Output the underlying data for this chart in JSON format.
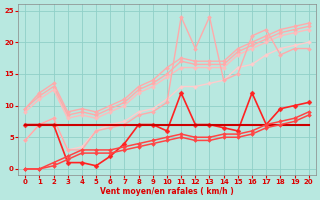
{
  "background_color": "#b8e8e0",
  "grid_color": "#90d0c8",
  "xlabel": "Vent moyen/en rafales ( km/h )",
  "xlim": [
    -0.5,
    20.5
  ],
  "ylim": [
    -1,
    26
  ],
  "xticks": [
    0,
    1,
    2,
    3,
    4,
    5,
    6,
    7,
    8,
    9,
    10,
    11,
    12,
    13,
    14,
    15,
    16,
    17,
    18,
    19,
    20
  ],
  "yticks": [
    0,
    5,
    10,
    15,
    20,
    25
  ],
  "series": [
    {
      "x": [
        0,
        1,
        2,
        3,
        4,
        5,
        6,
        7,
        8,
        9,
        10,
        11,
        12,
        13,
        14,
        15,
        16,
        17,
        18,
        19,
        20
      ],
      "y": [
        9.5,
        12,
        13.5,
        9,
        9.5,
        9,
        10,
        11,
        13,
        14,
        16,
        17.5,
        17,
        17,
        17,
        19,
        20,
        21,
        22,
        22.5,
        23
      ],
      "color": "#ffaaaa",
      "lw": 1.0,
      "marker": "D",
      "ms": 2.0
    },
    {
      "x": [
        0,
        1,
        2,
        3,
        4,
        5,
        6,
        7,
        8,
        9,
        10,
        11,
        12,
        13,
        14,
        15,
        16,
        17,
        18,
        19,
        20
      ],
      "y": [
        9.5,
        11.5,
        13,
        8.5,
        9,
        8.5,
        9.5,
        10.5,
        12.5,
        13.5,
        15,
        17,
        16.5,
        16.5,
        16.5,
        18.5,
        19.5,
        20.5,
        21.5,
        22,
        22.5
      ],
      "color": "#ffaaaa",
      "lw": 1.0,
      "marker": "D",
      "ms": 2.0
    },
    {
      "x": [
        0,
        1,
        2,
        3,
        4,
        5,
        6,
        7,
        8,
        9,
        10,
        11,
        12,
        13,
        14,
        15,
        16,
        17,
        18,
        19,
        20
      ],
      "y": [
        9,
        11,
        12.5,
        8,
        8.5,
        8,
        9,
        10,
        12,
        13,
        14.5,
        16,
        16,
        16,
        16,
        18,
        19,
        20,
        21,
        21.5,
        22
      ],
      "color": "#ffbbbb",
      "lw": 1.0,
      "marker": "D",
      "ms": 2.0
    },
    {
      "x": [
        0,
        1,
        2,
        3,
        4,
        5,
        6,
        7,
        8,
        9,
        10,
        11,
        12,
        13,
        14,
        15,
        16,
        17,
        18,
        19,
        20
      ],
      "y": [
        4.5,
        7,
        8,
        3,
        3.5,
        6,
        7,
        7.5,
        9,
        9.5,
        11,
        13,
        13,
        13.5,
        14,
        16,
        16.5,
        18,
        19,
        19.5,
        20
      ],
      "color": "#ffcccc",
      "lw": 1.0,
      "marker": "D",
      "ms": 2.0
    },
    {
      "x": [
        0,
        1,
        2,
        3,
        4,
        5,
        6,
        7,
        8,
        9,
        10,
        11,
        12,
        13,
        14,
        15,
        16,
        17,
        18,
        19,
        20
      ],
      "y": [
        4.5,
        7,
        8,
        3,
        3,
        6,
        6.5,
        7,
        8.5,
        9,
        10.5,
        24,
        19,
        24,
        14,
        15,
        21,
        22,
        18,
        19,
        19
      ],
      "color": "#ffaaaa",
      "lw": 1.0,
      "marker": "D",
      "ms": 2.0
    },
    {
      "x": [
        0,
        1,
        2,
        3,
        4,
        5,
        6,
        7,
        8,
        9,
        10,
        11,
        12,
        13,
        14,
        15,
        16,
        17,
        18,
        19,
        20
      ],
      "y": [
        7,
        7,
        7,
        1,
        1,
        0.5,
        2,
        4,
        7,
        7,
        6,
        12,
        7,
        7,
        6.5,
        6,
        12,
        7,
        9.5,
        10,
        10.5
      ],
      "color": "#ff2222",
      "lw": 1.2,
      "marker": "D",
      "ms": 2.5
    },
    {
      "x": [
        0,
        1,
        2,
        3,
        4,
        5,
        6,
        7,
        8,
        9,
        10,
        11,
        12,
        13,
        14,
        15,
        16,
        17,
        18,
        19,
        20
      ],
      "y": [
        7,
        7,
        7,
        7,
        7,
        7,
        7,
        7,
        7,
        7,
        7,
        7,
        7,
        7,
        7,
        7,
        7,
        7,
        7,
        7,
        7
      ],
      "color": "#cc0000",
      "lw": 1.5,
      "marker": null,
      "ms": 0
    },
    {
      "x": [
        0,
        1,
        2,
        3,
        4,
        5,
        6,
        7,
        8,
        9,
        10,
        11,
        12,
        13,
        14,
        15,
        16,
        17,
        18,
        19,
        20
      ],
      "y": [
        0,
        0,
        1,
        2,
        3,
        3,
        3,
        3.5,
        4,
        4.5,
        5,
        5.5,
        5,
        5,
        5.5,
        5.5,
        6,
        7,
        7.5,
        8,
        9
      ],
      "color": "#ff4444",
      "lw": 1.1,
      "marker": "D",
      "ms": 2.0
    },
    {
      "x": [
        0,
        1,
        2,
        3,
        4,
        5,
        6,
        7,
        8,
        9,
        10,
        11,
        12,
        13,
        14,
        15,
        16,
        17,
        18,
        19,
        20
      ],
      "y": [
        0,
        0,
        0.5,
        1.5,
        2.5,
        2.5,
        2.5,
        3,
        3.5,
        4,
        4.5,
        5,
        4.5,
        4.5,
        5,
        5,
        5.5,
        6.5,
        7,
        7.5,
        8.5
      ],
      "color": "#ff4444",
      "lw": 1.1,
      "marker": "D",
      "ms": 2.0
    }
  ]
}
